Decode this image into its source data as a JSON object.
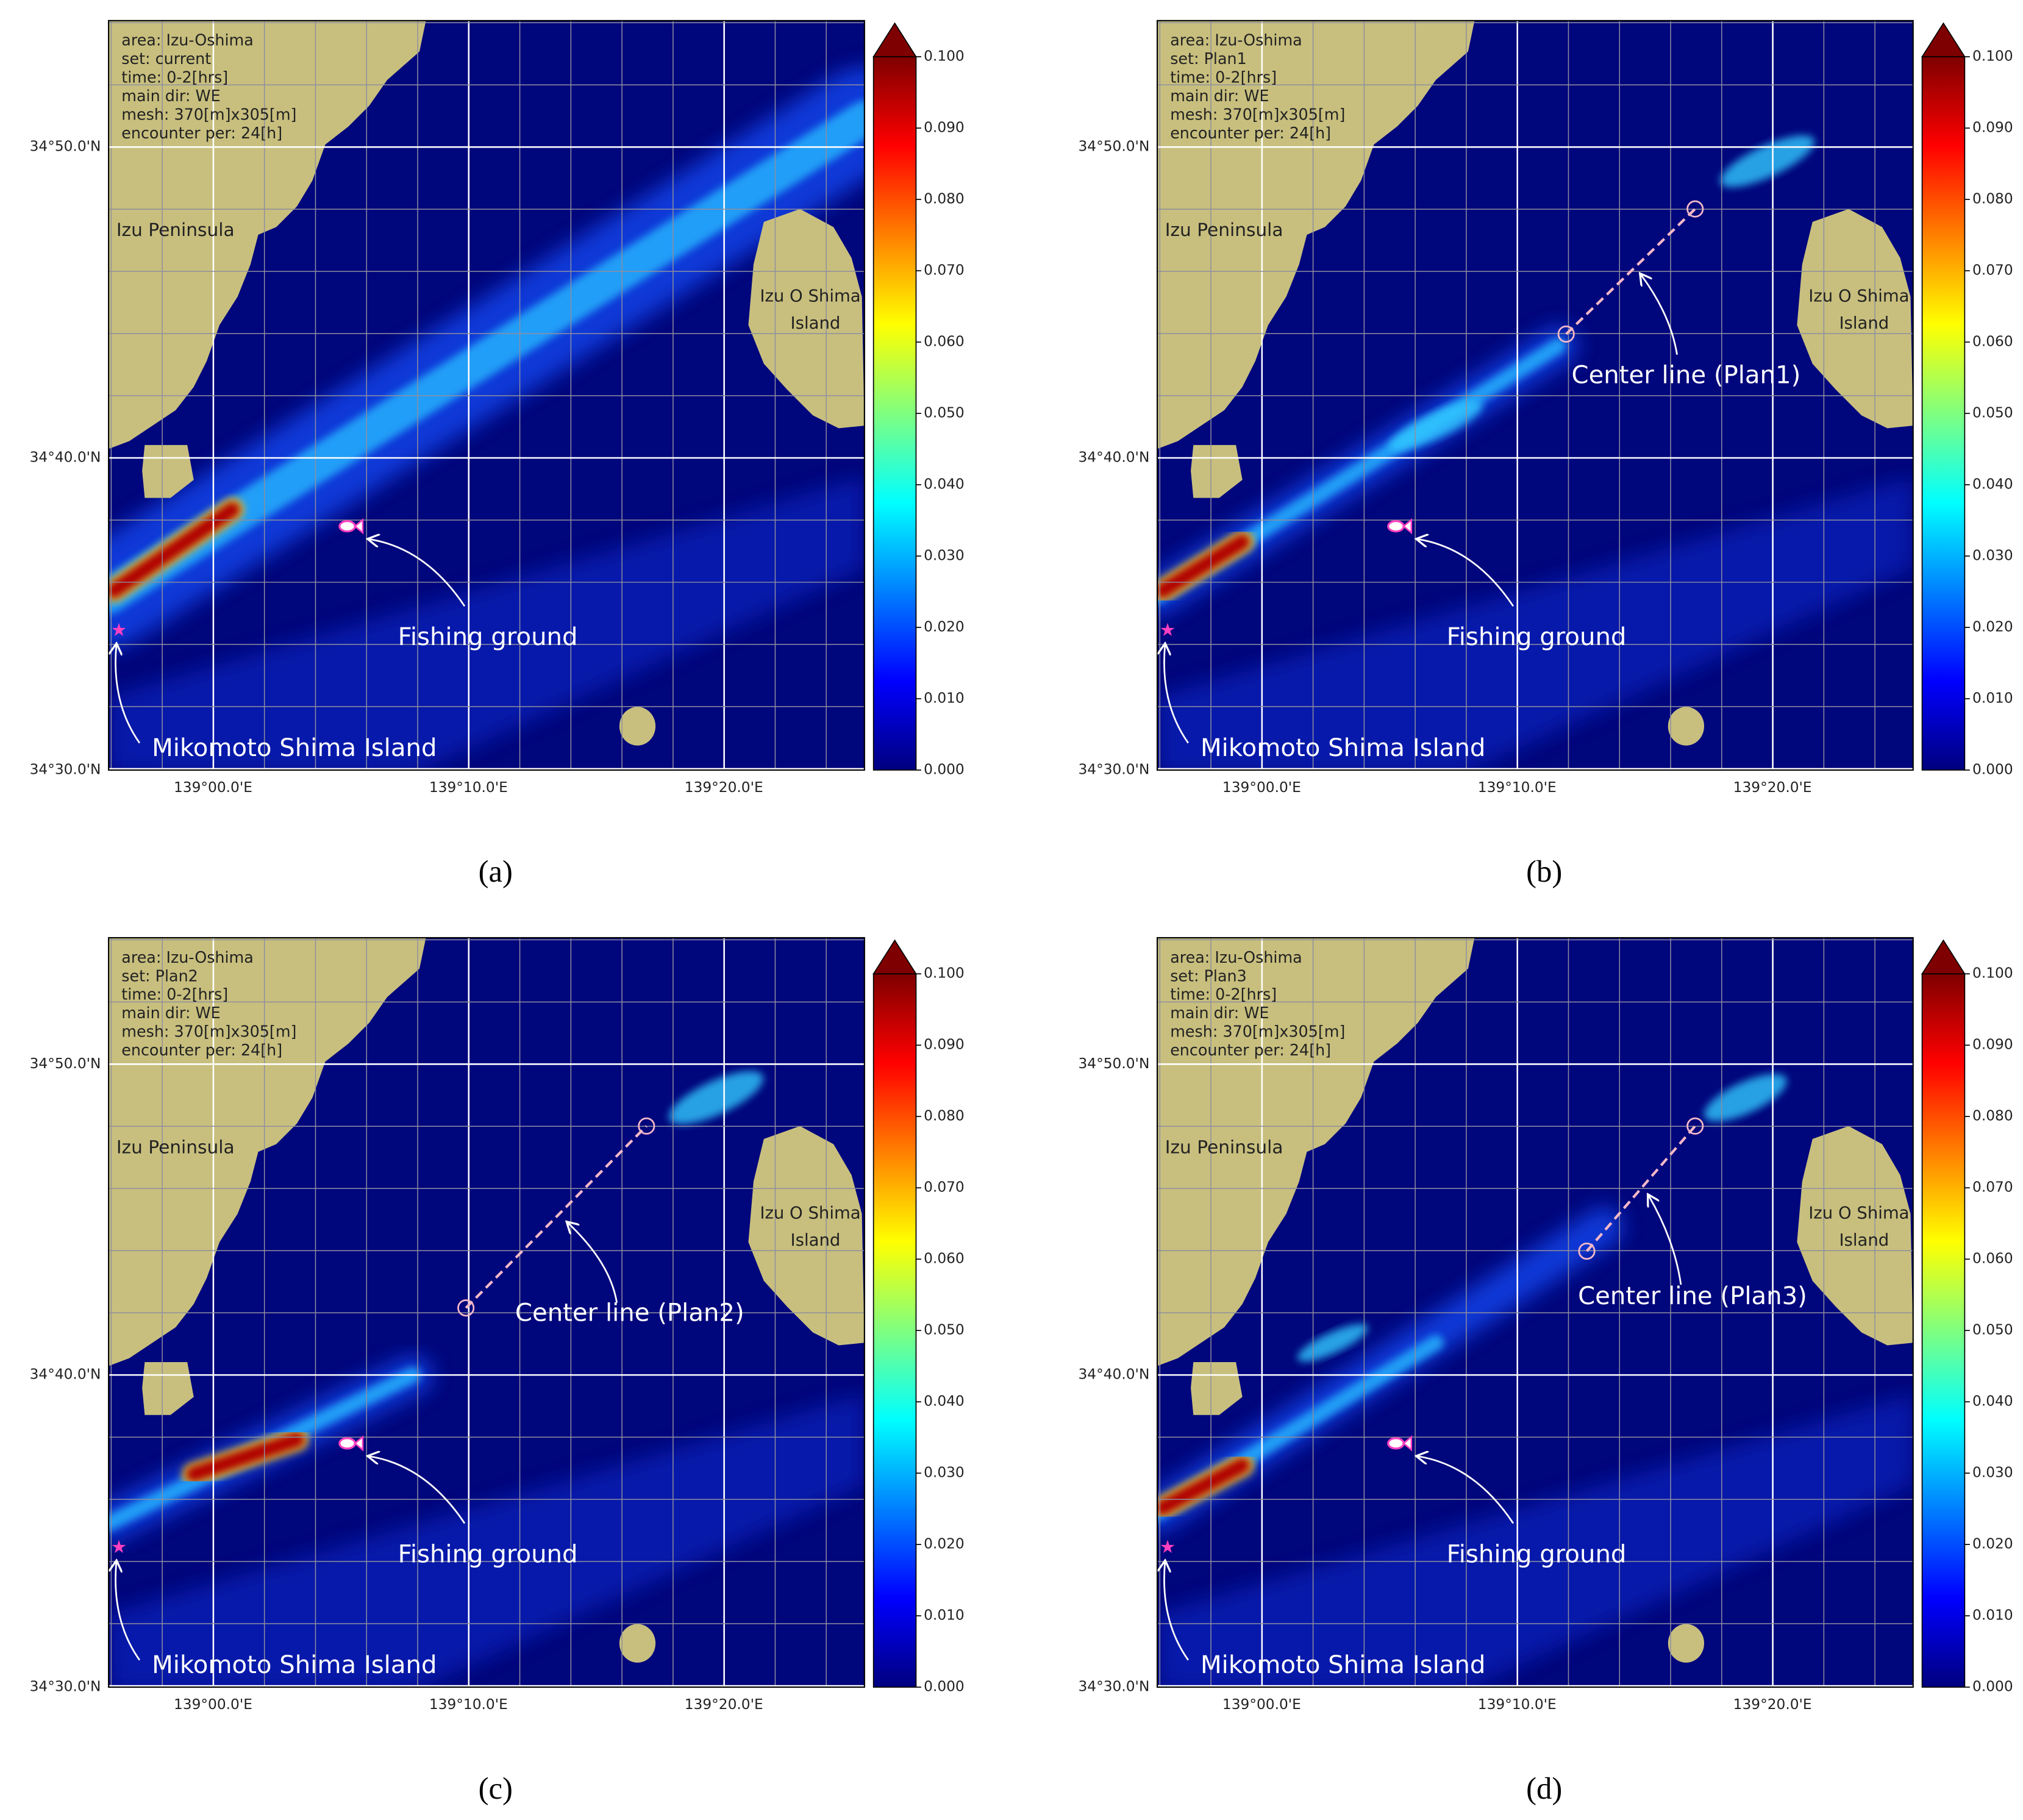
{
  "panels": [
    {
      "caption": "(a)",
      "info": [
        "area: Izu-Oshima",
        "set: current",
        "time: 0-2[hrs]",
        "main dir: WE",
        "mesh: 370[m]x305[m]",
        "encounter per: 24[h]"
      ],
      "peninsula": "Izu Peninsula",
      "island": [
        "Izu O Shima",
        "Island"
      ],
      "fishing": "Fishing ground",
      "mikomoto": "Mikomoto Shima Island"
    },
    {
      "caption": "(b)",
      "info": [
        "area: Izu-Oshima",
        "set: Plan1",
        "time: 0-2[hrs]",
        "main dir: WE",
        "mesh: 370[m]x305[m]",
        "encounter per: 24[h]"
      ],
      "peninsula": "Izu Peninsula",
      "island": [
        "Izu O Shima",
        "Island"
      ],
      "fishing": "Fishing ground",
      "mikomoto": "Mikomoto Shima Island",
      "center": "Center line (Plan1)"
    },
    {
      "caption": "(c)",
      "info": [
        "area: Izu-Oshima",
        "set: Plan2",
        "time: 0-2[hrs]",
        "main dir: WE",
        "mesh: 370[m]x305[m]",
        "encounter per: 24[h]"
      ],
      "peninsula": "Izu Peninsula",
      "island": [
        "Izu O Shima",
        "Island"
      ],
      "fishing": "Fishing ground",
      "mikomoto": "Mikomoto Shima Island",
      "center": "Center line (Plan2)"
    },
    {
      "caption": "(d)",
      "info": [
        "area: Izu-Oshima",
        "set: Plan3",
        "time: 0-2[hrs]",
        "main dir: WE",
        "mesh: 370[m]x305[m]",
        "encounter per: 24[h]"
      ],
      "peninsula": "Izu Peninsula",
      "island": [
        "Izu O Shima",
        "Island"
      ],
      "fishing": "Fishing ground",
      "mikomoto": "Mikomoto Shima Island",
      "center": "Center line (Plan3)"
    }
  ],
  "y_ticks": [
    "34°50.0'N",
    "34°40.0'N",
    "34°30.0'N"
  ],
  "x_ticks": [
    "139°00.0'E",
    "139°10.0'E",
    "139°20.0'E"
  ],
  "colorbar_ticks": [
    "0.100",
    "0.090",
    "0.080",
    "0.070",
    "0.060",
    "0.050",
    "0.040",
    "0.030",
    "0.020",
    "0.010",
    "0.000"
  ]
}
